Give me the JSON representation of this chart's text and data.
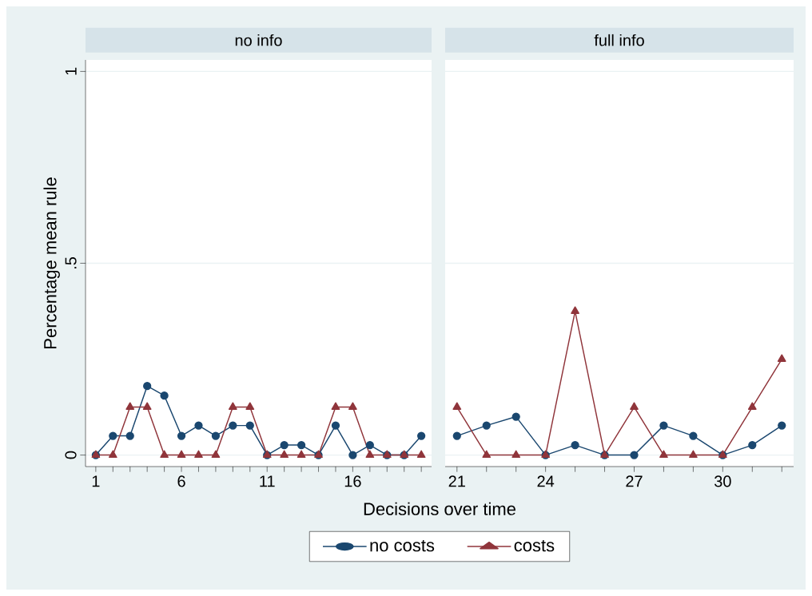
{
  "chart_data": [
    {
      "type": "line",
      "title": "no info",
      "xlabel": "Decisions over time",
      "ylabel": "Percentage mean rule",
      "x": [
        1,
        2,
        3,
        4,
        5,
        6,
        7,
        8,
        9,
        10,
        11,
        12,
        13,
        14,
        15,
        16,
        17,
        18,
        19,
        20
      ],
      "series": [
        {
          "name": "no costs",
          "color": "#1a476f",
          "marker": "circle",
          "values": [
            0,
            0.05,
            0.05,
            0.18,
            0.155,
            0.05,
            0.077,
            0.05,
            0.077,
            0.077,
            0,
            0.026,
            0.026,
            0,
            0.077,
            0,
            0.026,
            0,
            0,
            0.05
          ]
        },
        {
          "name": "costs",
          "color": "#90353b",
          "marker": "triangle",
          "values": [
            0,
            0,
            0.125,
            0.125,
            0,
            0,
            0,
            0,
            0.125,
            0.125,
            0,
            0,
            0,
            0,
            0.125,
            0.125,
            0,
            0,
            0,
            0
          ]
        }
      ],
      "xlim": [
        0.4,
        20.6
      ],
      "ylim": [
        -0.03,
        1.03
      ],
      "xticks": [
        1,
        {
          "value": 2,
          "label": null
        },
        {
          "value": 3,
          "label": null
        },
        {
          "value": 4,
          "label": null
        },
        {
          "value": 5,
          "label": null
        },
        6,
        {
          "value": 7,
          "label": null
        },
        {
          "value": 8,
          "label": null
        },
        {
          "value": 9,
          "label": null
        },
        {
          "value": 10,
          "label": null
        },
        11,
        {
          "value": 12,
          "label": null
        },
        {
          "value": 13,
          "label": null
        },
        {
          "value": 14,
          "label": null
        },
        {
          "value": 15,
          "label": null
        },
        16,
        {
          "value": 17,
          "label": null
        },
        {
          "value": 18,
          "label": null
        },
        {
          "value": 19,
          "label": null
        },
        {
          "value": 20,
          "label": null
        }
      ],
      "yticks": [
        0,
        {
          "value": 0.5,
          "label": ".5"
        },
        1
      ],
      "grid": "y",
      "legend": "bottom"
    },
    {
      "type": "line",
      "title": "full info",
      "x": [
        21,
        22,
        23,
        24,
        25,
        26,
        27,
        28,
        29,
        30,
        31,
        32
      ],
      "series": [
        {
          "color": "#1a476f",
          "marker": "circle",
          "values": [
            0.05,
            0.077,
            0.1,
            0,
            0.026,
            0,
            0,
            0.077,
            0.05,
            0,
            0.026,
            0.077
          ]
        },
        {
          "color": "#90353b",
          "marker": "triangle",
          "values": [
            0.125,
            0,
            0,
            0,
            0.375,
            0,
            0.125,
            0,
            0,
            0,
            0.125,
            0.25
          ]
        }
      ],
      "xlim": [
        20.6,
        32.4
      ],
      "ylim": [
        -0.03,
        1.03
      ],
      "xticks": [
        21,
        {
          "value": 22,
          "label": null
        },
        {
          "value": 23,
          "label": null
        },
        24,
        {
          "value": 25,
          "label": null
        },
        {
          "value": 26,
          "label": null
        },
        27,
        {
          "value": 28,
          "label": null
        },
        {
          "value": 29,
          "label": null
        },
        30,
        {
          "value": 31,
          "label": null
        },
        {
          "value": 32,
          "label": null
        }
      ],
      "yticks": [
        0,
        0.5,
        1
      ],
      "grid": "y",
      "tick_labels": "x"
    }
  ]
}
